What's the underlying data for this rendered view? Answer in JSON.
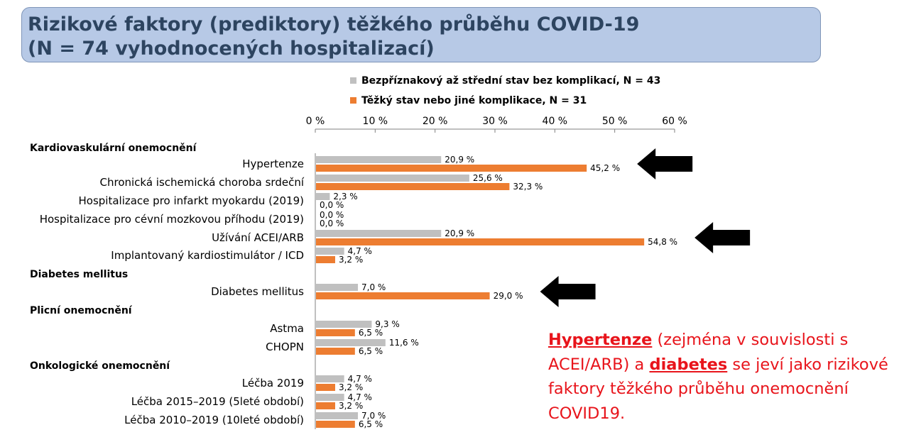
{
  "header": {
    "title_line1": "Rizikové faktory (prediktory) těžkého průběhu COVID-19",
    "title_line2": "(N = 74 vyhodnocených hospitalizací)"
  },
  "chart_data": {
    "type": "bar",
    "orientation": "horizontal",
    "xlim": [
      0,
      60
    ],
    "x_ticks": [
      "0 %",
      "10 %",
      "20 %",
      "30 %",
      "40 %",
      "50 %",
      "60 %"
    ],
    "legend_placement": "top",
    "series": [
      {
        "name": "Bezpříznakový až střední stav bez komplikací, N = 43",
        "color": "#c0c0c0"
      },
      {
        "name": "Těžký stav nebo jiné komplikace, N = 31",
        "color": "#ed7d31"
      }
    ],
    "groups": [
      {
        "name": "Kardiovaskulární onemocnění",
        "items": [
          {
            "label": "Hypertenze",
            "values": [
              20.9,
              45.2
            ],
            "value_labels": [
              "20,9 %",
              "45,2 %"
            ]
          },
          {
            "label": "Chronická ischemická choroba srdeční",
            "values": [
              25.6,
              32.3
            ],
            "value_labels": [
              "25,6 %",
              "32,3 %"
            ]
          },
          {
            "label": "Hospitalizace pro infarkt myokardu (2019)",
            "values": [
              2.3,
              0.0
            ],
            "value_labels": [
              "2,3 %",
              "0,0 %"
            ]
          },
          {
            "label": "Hospitalizace pro cévní mozkovou příhodu (2019)",
            "values": [
              0.0,
              0.0
            ],
            "value_labels": [
              "0,0 %",
              "0,0 %"
            ]
          },
          {
            "label": "Užívání ACEI/ARB",
            "values": [
              20.9,
              54.8
            ],
            "value_labels": [
              "20,9 %",
              "54,8 %"
            ]
          },
          {
            "label": "Implantovaný kardiostimulátor / ICD",
            "values": [
              4.7,
              3.2
            ],
            "value_labels": [
              "4,7 %",
              "3,2 %"
            ]
          }
        ]
      },
      {
        "name": "Diabetes mellitus",
        "items": [
          {
            "label": "Diabetes mellitus",
            "values": [
              7.0,
              29.0
            ],
            "value_labels": [
              "7,0 %",
              "29,0 %"
            ]
          }
        ]
      },
      {
        "name": "Plicní onemocnění",
        "items": [
          {
            "label": "Astma",
            "values": [
              9.3,
              6.5
            ],
            "value_labels": [
              "9,3 %",
              "6,5 %"
            ]
          },
          {
            "label": "CHOPN",
            "values": [
              11.6,
              6.5
            ],
            "value_labels": [
              "11,6 %",
              "6,5 %"
            ]
          }
        ]
      },
      {
        "name": "Onkologické onemocnění",
        "items": [
          {
            "label": "Léčba 2019",
            "values": [
              4.7,
              3.2
            ],
            "value_labels": [
              "4,7 %",
              "3,2 %"
            ]
          },
          {
            "label": "Léčba 2015–2019 (5leté období)",
            "values": [
              4.7,
              3.2
            ],
            "value_labels": [
              "4,7 %",
              "3,2 %"
            ]
          },
          {
            "label": "Léčba 2010–2019 (10leté období)",
            "values": [
              7.0,
              6.5
            ],
            "value_labels": [
              "7,0 %",
              "6,5 %"
            ]
          }
        ]
      }
    ],
    "arrow_rows": [
      "Hypertenze",
      "Užívání ACEI/ARB",
      "Diabetes mellitus"
    ]
  },
  "note": {
    "hl1": "Hypertenze",
    "t1": " (zejména v souvislosti s ACEI/ARB) a ",
    "hl2": "diabetes",
    "t2": " se jeví jako rizikové faktory těžkého průběhu onemocnění COVID19."
  }
}
